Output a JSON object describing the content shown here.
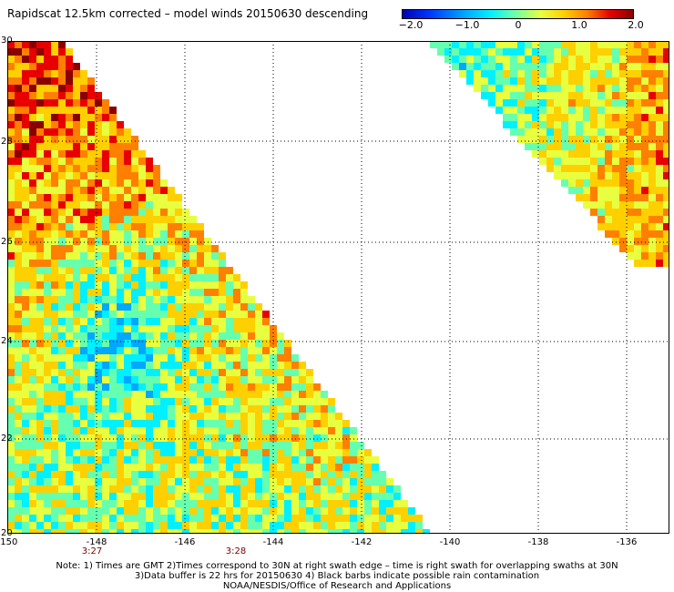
{
  "title": "Rapidscat 12.5km corrected – model winds 20150630 descending",
  "colorbar": {
    "ticks": [
      "−2.0",
      "−1.0",
      "0",
      "1.0",
      "2.0"
    ],
    "range": [
      -2.0,
      2.0
    ]
  },
  "axes": {
    "x_ticks": [
      "-150",
      "-148",
      "-146",
      "-144",
      "-142",
      "-140",
      "-138",
      "-136"
    ],
    "y_ticks": [
      "30",
      "28",
      "26",
      "24",
      "22",
      "20"
    ],
    "lon_range": [
      -150,
      -135
    ],
    "lat_range": [
      20,
      30
    ],
    "grid": true
  },
  "times": [
    "3:27",
    "3:28"
  ],
  "notes": [
    "Note: 1) Times are GMT 2)Times correspond to 30N at right swath edge – time is right swath for overlapping swaths at 30N",
    "3)Data buffer is 22 hrs for 20150630 4) Black barbs indicate possible rain contamination",
    "NOAA/NESDIS/Office of Research and Applications"
  ],
  "colors": {
    "scale": [
      "#0000b4",
      "#0038ff",
      "#00a8ff",
      "#00f0ff",
      "#66ffb0",
      "#e8ff40",
      "#ffd000",
      "#ff8000",
      "#e80000",
      "#8a0000"
    ]
  }
}
